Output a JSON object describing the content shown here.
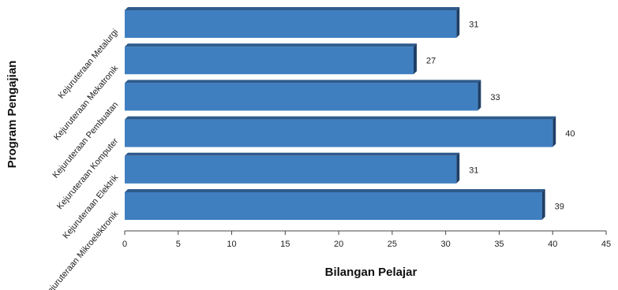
{
  "chart_data": {
    "type": "bar",
    "orientation": "horizontal",
    "categories": [
      "Kejuruteraan Metalurgi",
      "Kejuruteraan Mekatronik",
      "Kejuruteraan Pembuatan",
      "Kejuruteraan Komputer",
      "Kejuruteraan Elektrik",
      "Kejuruteraan Mikroelektronik"
    ],
    "values": [
      31,
      27,
      33,
      40,
      31,
      39
    ],
    "xlabel": "Bilangan Pelajar",
    "ylabel": "Program Pengajian",
    "xlim": [
      0,
      45
    ],
    "xticks": [
      "0",
      "5",
      "10",
      "15",
      "20",
      "25",
      "30",
      "35",
      "40",
      "45"
    ],
    "grid": false,
    "legend": "none",
    "bar_color": "#3f7fc0",
    "bar_top_color": "#2e5b8c",
    "bar_side_color": "#1f3f66"
  }
}
